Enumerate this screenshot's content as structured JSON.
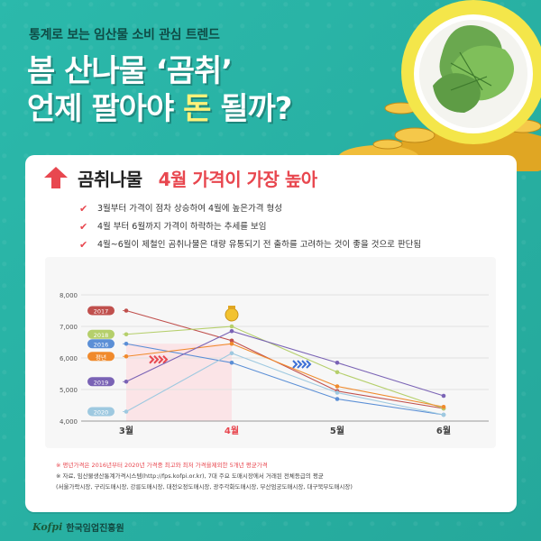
{
  "header": {
    "subtitle": "통계로 보는 임산물 소비 관심 트렌드",
    "headline_line1": "봄 산나물 ‘곰취’",
    "headline_line2_pre": "언제 팔아야 ",
    "headline_line2_hl": "돈",
    "headline_line2_post": " 될까?"
  },
  "card": {
    "title": "곰취나물",
    "title_accent": "4월 가격이 가장 높아",
    "bullets": [
      "3월부터 가격이 점차 상승하여 4월에 높은가격 형성",
      "4월 부터 6월까지 가격이 하락하는 추세를 보임",
      "4월~6월이 제철인 곰취나물은 대량 유통되기 전 출하를 고려하는 것이 좋을 것으로 판단됨"
    ]
  },
  "chart_data": {
    "type": "line",
    "categories": [
      "3월",
      "4월",
      "5월",
      "6월"
    ],
    "ylim": [
      4000,
      8000
    ],
    "yticks": [
      "4,000",
      "5,000",
      "6,000",
      "7,000",
      "8,000"
    ],
    "series": [
      {
        "name": "2017",
        "values": [
          7500,
          6550,
          4950,
          4400
        ],
        "color": "#c0504d"
      },
      {
        "name": "2018",
        "values": [
          6750,
          7000,
          5550,
          4400
        ],
        "color": "#b5cf6b"
      },
      {
        "name": "2016",
        "values": [
          6450,
          5850,
          4700,
          4200
        ],
        "color": "#5b8fd6"
      },
      {
        "name": "평년",
        "values": [
          6050,
          6450,
          5100,
          4450
        ],
        "color": "#f08a2c"
      },
      {
        "name": "2019",
        "values": [
          5250,
          6850,
          5850,
          4800
        ],
        "color": "#7a63b5"
      },
      {
        "name": "2020",
        "values": [
          4300,
          6150,
          4900,
          4200
        ],
        "color": "#9ec9e0"
      }
    ]
  },
  "notes": {
    "note1": "※ 평년가격은 2016년부터 2020년 가격중 최고와 최저 가격을제외한 5개년 평균가격",
    "note2": "※ 자료, 임산물생산통계가격시스템(http://fps.kofpi.or.kr), 7대 주요 도매시장에서 거래된 전체등급의 평균",
    "note3": "(서울가락시장, 구리도매시장, 강릉도매시장, 대전오정도매시장, 광주각화도매시장, 부산엄궁도매시장, 대구북부도매시장)"
  },
  "footer": {
    "logo_mark": "Kofpi",
    "org_name": "한국임업진흥원"
  }
}
